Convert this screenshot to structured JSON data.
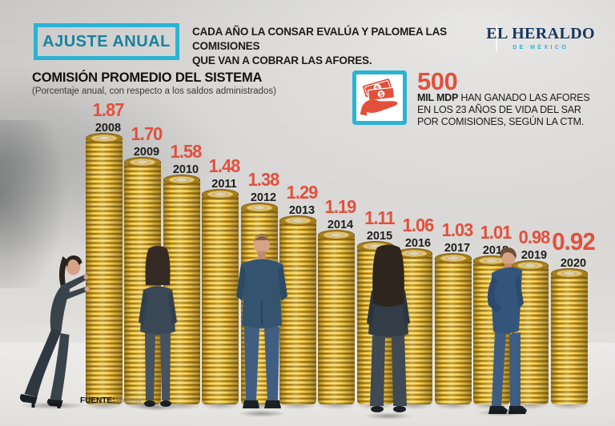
{
  "header": {
    "badge_label": "AJUSTE ANUAL",
    "description_line1": "CADA AÑO LA CONSAR EVALÚA Y PALOMEA LAS COMISIONES",
    "description_line2": "QUE VAN A COBRAR LAS AFORES.",
    "logo_title": "EL HERALDO",
    "logo_subtitle": "DE MÉXICO"
  },
  "chart_header": {
    "title": "COMISIÓN PROMEDIO DEL SISTEMA",
    "subtitle": "(Porcentaje anual, con respecto a los saldos administrados)"
  },
  "highlight": {
    "icon": "money-in-hand-icon",
    "amount": "500",
    "amount_unit_bold": "MIL MDP",
    "line1_rest": " HAN GANADO LAS AFORES",
    "line2": "EN LOS 23 AÑOS DE VIDA DEL SAR",
    "line3": "POR COMISIONES, SEGÚN LA CTM.",
    "currency_symbol": "$"
  },
  "chart_data": {
    "type": "bar",
    "title": "COMISIÓN PROMEDIO DEL SISTEMA",
    "subtitle": "(Porcentaje anual, con respecto a los saldos administrados)",
    "unit": "porcentaje anual",
    "categories": [
      "2008",
      "2009",
      "2010",
      "2011",
      "2012",
      "2013",
      "2014",
      "2015",
      "2016",
      "2017",
      "2018",
      "2019",
      "2020"
    ],
    "values": [
      1.87,
      1.7,
      1.58,
      1.48,
      1.38,
      1.29,
      1.19,
      1.11,
      1.06,
      1.03,
      1.01,
      0.98,
      0.92
    ],
    "value_labels": [
      "1.87",
      "1.70",
      "1.58",
      "1.48",
      "1.38",
      "1.29",
      "1.19",
      "1.11",
      "1.06",
      "1.03",
      "1.01",
      "0.98",
      "0.92"
    ],
    "bar_style": "gold-coin-stacks",
    "ylim": [
      0,
      2
    ],
    "grid": false,
    "legend": "none",
    "emphasized_last_value": true,
    "source": "Consar."
  },
  "figures": [
    "businesswoman-pushing-coin-stack",
    "businesswoman-back-view",
    "businessman-blue-suit-back-view",
    "businesswoman-long-hair-back-view",
    "businessman-blue-suit-side-view"
  ],
  "footer": {
    "source_label": "FUENTE:",
    "source_value": " Consar."
  },
  "colors": {
    "teal_border": "#2bb3d4",
    "teal_text": "#15839f",
    "accent_red": "#e2503b",
    "logo_navy": "#14365f",
    "text_black": "#1d1d1b",
    "coin_gold": "#f6ce48",
    "background_gray": "#d6d5d3"
  }
}
